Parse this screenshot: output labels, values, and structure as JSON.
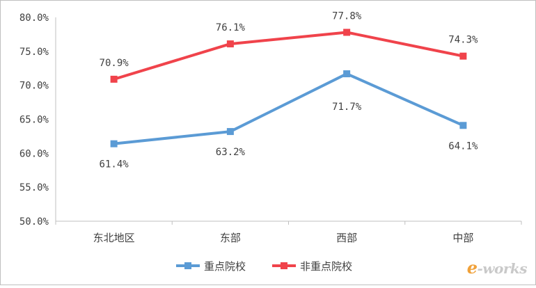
{
  "chart_data": {
    "type": "line",
    "categories": [
      "东北地区",
      "东部",
      "西部",
      "中部"
    ],
    "series": [
      {
        "name": "重点院校",
        "values": [
          61.4,
          63.2,
          71.7,
          64.1
        ],
        "labels": [
          "61.4%",
          "63.2%",
          "71.7%",
          "64.1%"
        ],
        "color": "#5b9bd5"
      },
      {
        "name": "非重点院校",
        "values": [
          70.9,
          76.1,
          77.8,
          74.3
        ],
        "labels": [
          "70.9%",
          "76.1%",
          "77.8%",
          "74.3%"
        ],
        "color": "#f0434b"
      }
    ],
    "ylim": [
      50,
      80
    ],
    "yticks": [
      "50.0%",
      "55.0%",
      "60.0%",
      "65.0%",
      "70.0%",
      "75.0%",
      "80.0%"
    ],
    "ytick_values": [
      50,
      55,
      60,
      65,
      70,
      75,
      80
    ],
    "grid": false,
    "legend_position": "bottom"
  },
  "watermark": {
    "e": "e",
    "rest": "-works"
  }
}
